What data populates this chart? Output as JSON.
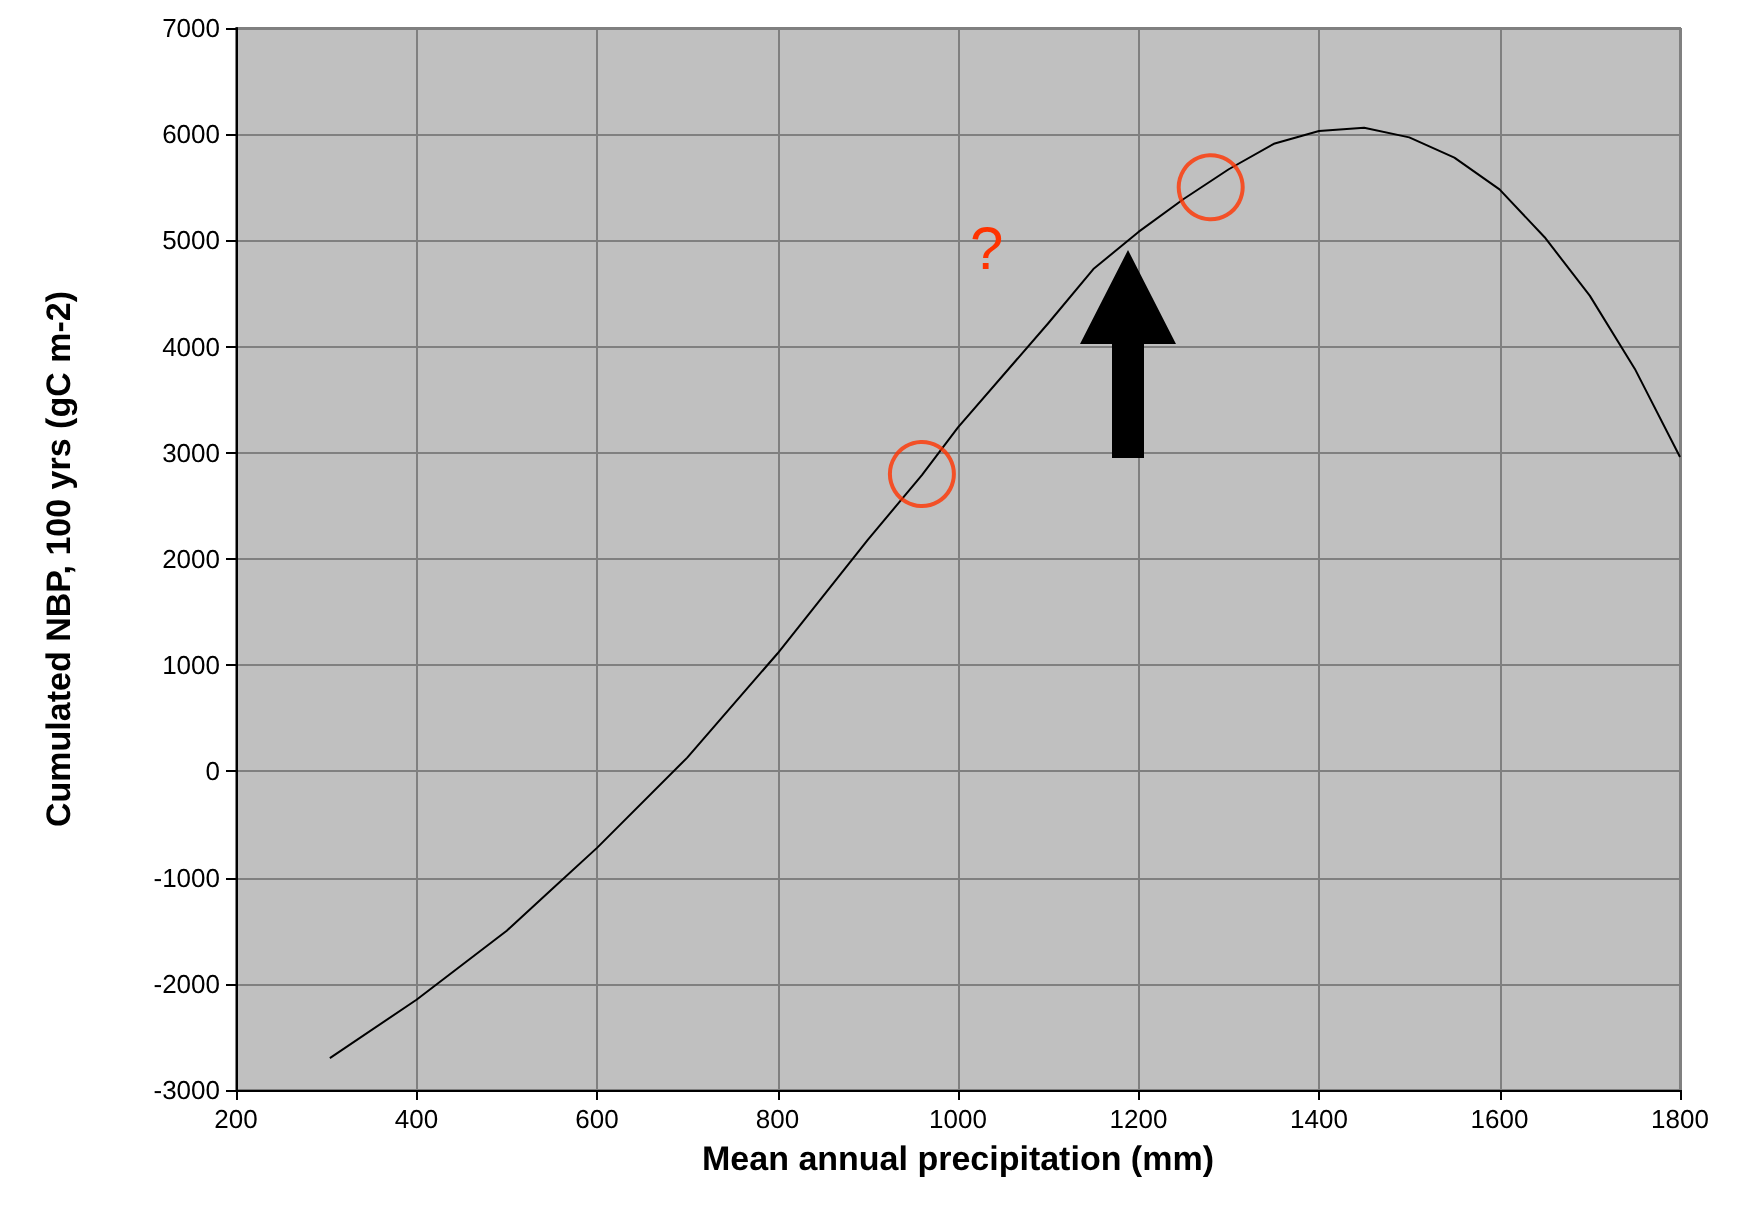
{
  "chart_data": {
    "type": "line",
    "xlabel": "Mean annual precipitation (mm)",
    "ylabel": "Cumulated NBP, 100 yrs (gC m-2)",
    "series": [
      {
        "color": "#000000",
        "marker": "none",
        "x": [
          304,
          400,
          500,
          550,
          600,
          700,
          800,
          900,
          960,
          1000,
          1100,
          1150,
          1200,
          1250,
          1300,
          1350,
          1400,
          1450,
          1500,
          1550,
          1600,
          1650,
          1700,
          1750,
          1800
        ],
        "values": [
          -2700,
          -2150,
          -1500,
          -1110,
          -720,
          130,
          1110,
          2180,
          2790,
          3240,
          4220,
          4730,
          5080,
          5390,
          5670,
          5910,
          6030,
          6060,
          5970,
          5780,
          5480,
          5030,
          4480,
          3790,
          2960
        ]
      },
      {
        "type": "scatter",
        "marker": "circle",
        "color": "#ff3300",
        "x": [
          960,
          1280
        ],
        "values": [
          2800,
          5500
        ]
      }
    ],
    "annotations": [
      "?"
    ],
    "xlim": [
      200,
      1800
    ],
    "xticks": [
      200,
      400,
      600,
      800,
      1000,
      1200,
      1400,
      1600,
      1800
    ],
    "ylim": [
      -3000,
      7000
    ],
    "yticks": [
      -3000,
      -2000,
      -1000,
      0,
      1000,
      2000,
      3000,
      4000,
      5000,
      6000,
      7000
    ],
    "grid": true,
    "line_style": "solid"
  }
}
